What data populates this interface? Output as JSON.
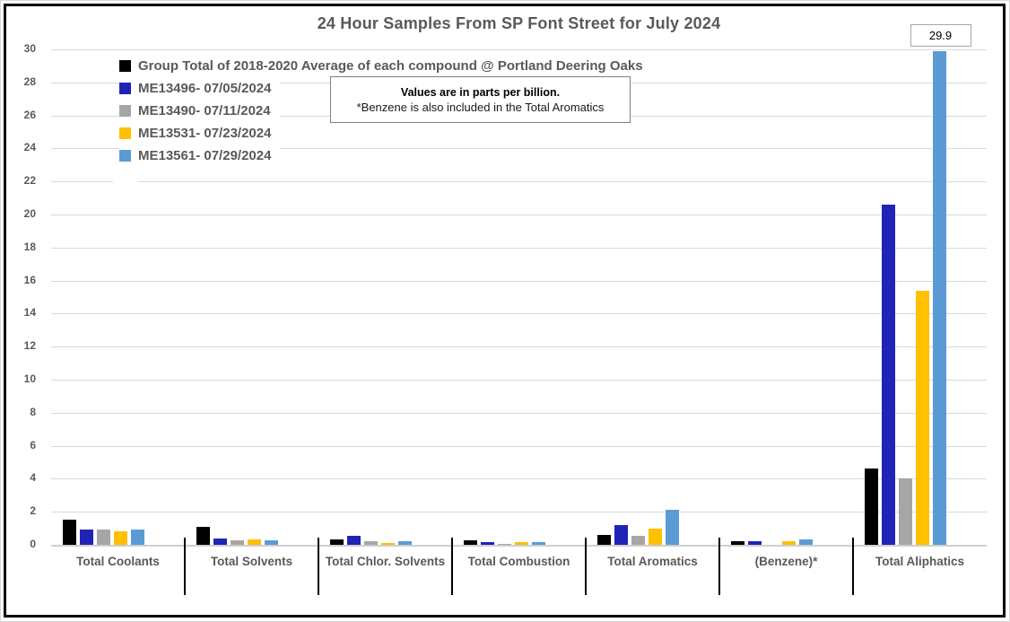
{
  "title": "24 Hour Samples From SP Font Street for July 2024",
  "note": {
    "line1": "Values are in parts per billion.",
    "line2": "*Benzene is also included in the Total Aromatics"
  },
  "colors": {
    "text_gray": "#595959",
    "gridline": "#d9d9d9",
    "frame_border": "#000000"
  },
  "chart_data": {
    "type": "bar",
    "title": "24 Hour Samples From SP Font Street for July 2024",
    "units": "parts per billion",
    "categories": [
      "Total Coolants",
      "Total Solvents",
      "Total Chlor. Solvents",
      "Total Combustion",
      "Total Aromatics",
      "(Benzene)*",
      "Total Aliphatics"
    ],
    "series": [
      {
        "name": "Group Total of 2018-2020 Average of each compound @ Portland Deering Oaks",
        "color": "#000000",
        "values": [
          1.5,
          1.1,
          0.35,
          0.27,
          0.6,
          0.2,
          4.6
        ]
      },
      {
        "name": "ME13496- 07/05/2024",
        "color": "#1F24B4",
        "values": [
          0.95,
          0.38,
          0.55,
          0.16,
          1.2,
          0.22,
          20.6
        ]
      },
      {
        "name": "ME13490- 07/11/2024",
        "color": "#A6A6A6",
        "values": [
          0.9,
          0.25,
          0.2,
          0.07,
          0.55,
          0,
          4.0
        ]
      },
      {
        "name": "ME13531- 07/23/2024",
        "color": "#FFC000",
        "values": [
          0.8,
          0.3,
          0.12,
          0.16,
          1.0,
          0.2,
          15.4
        ]
      },
      {
        "name": "ME13561- 07/29/2024",
        "color": "#5B9BD5",
        "values": [
          0.95,
          0.27,
          0.2,
          0.16,
          2.1,
          0.35,
          29.9
        ]
      }
    ],
    "ylim": [
      0,
      30
    ],
    "ytick_step": 2,
    "grid": true,
    "legend_position": "top-left",
    "annotations": [
      {
        "category": "Total Aliphatics",
        "series": "ME13561- 07/29/2024",
        "label": "29.9"
      }
    ]
  }
}
